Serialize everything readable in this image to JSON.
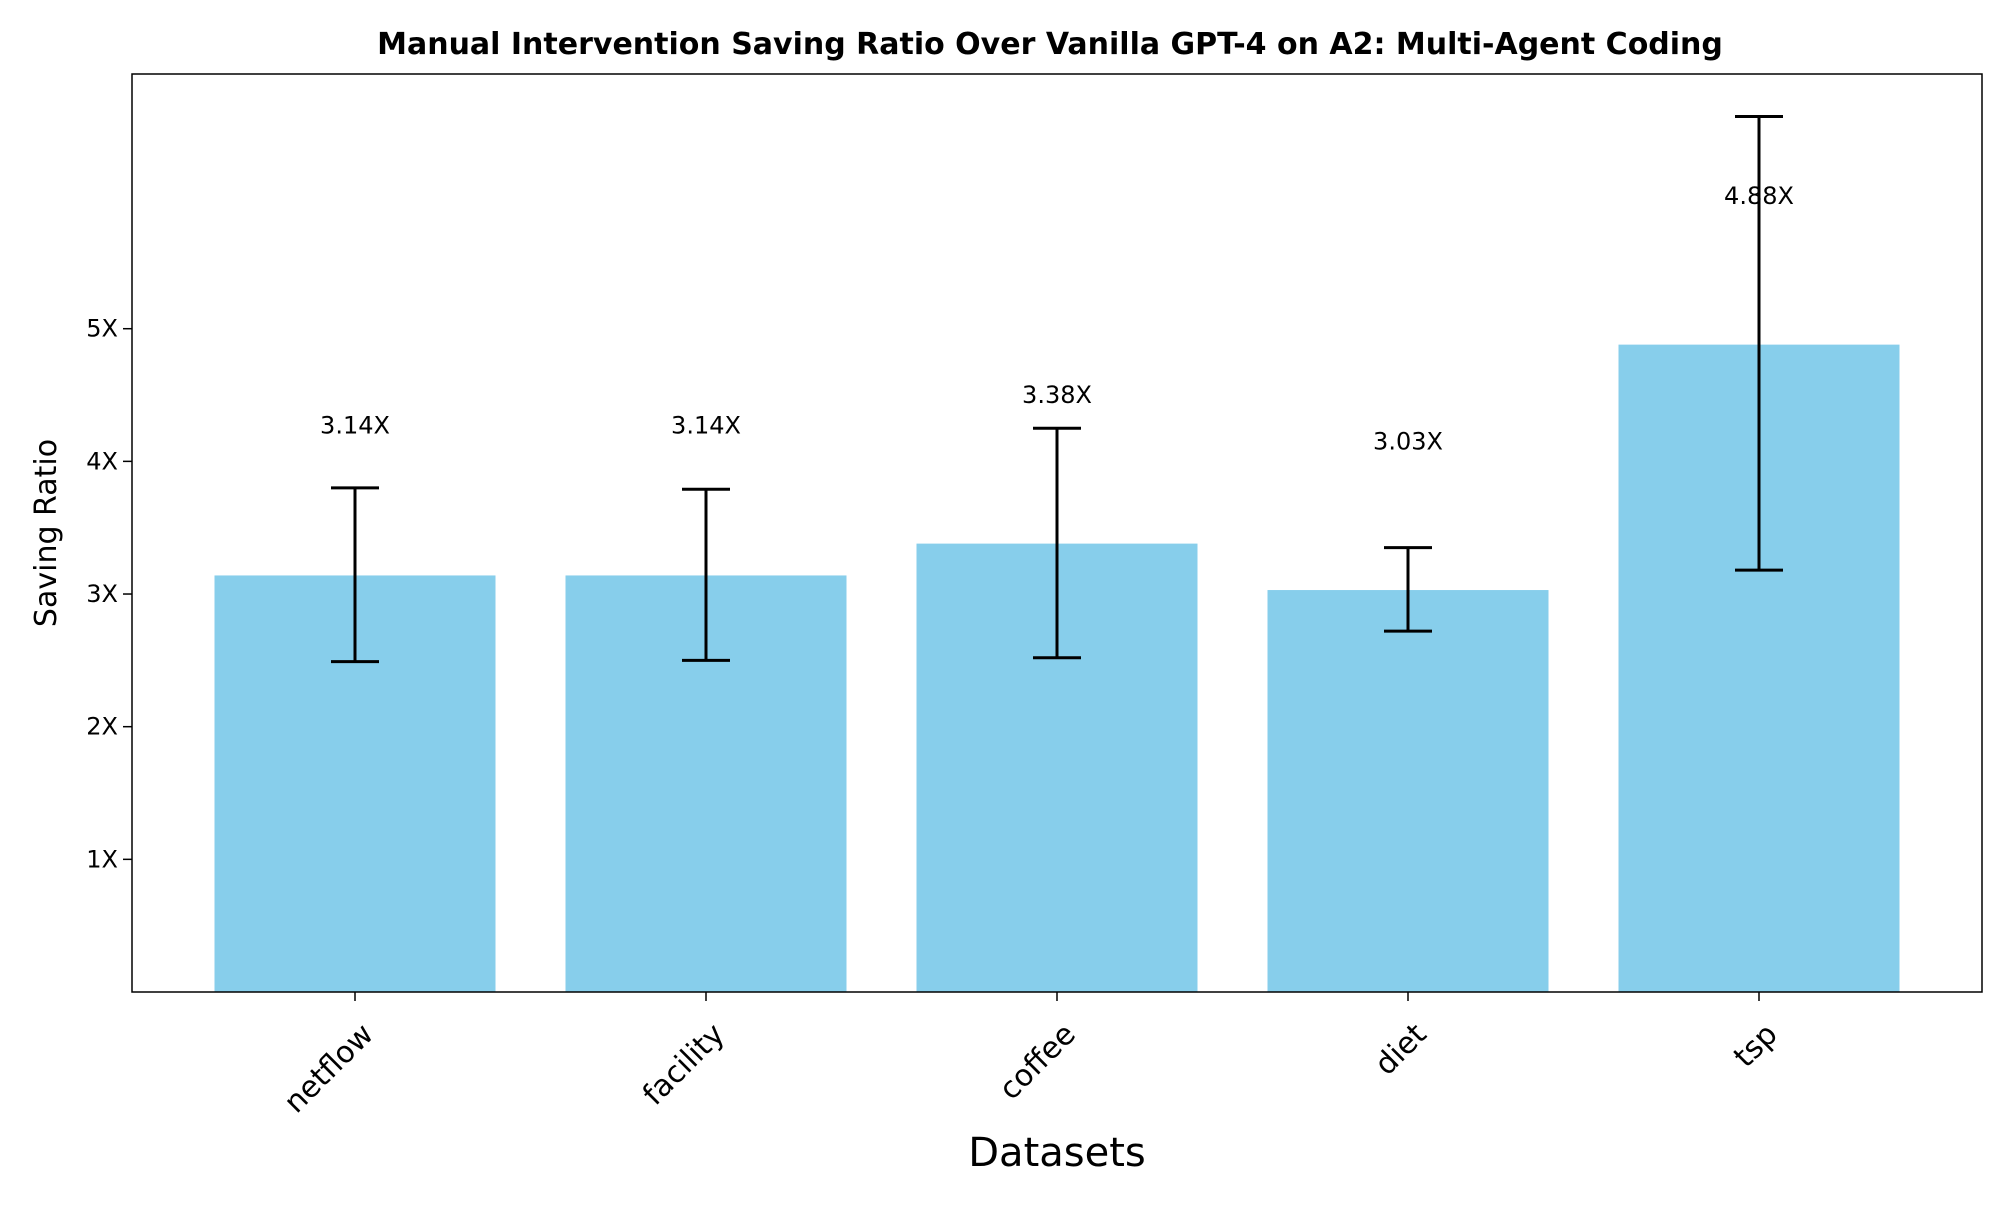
{
  "chart_data": {
    "type": "bar",
    "title": "Manual Intervention Saving Ratio Over Vanilla GPT-4 on A2: Multi-Agent Coding",
    "xlabel": "Datasets",
    "ylabel": "Saving Ratio",
    "categories": [
      "netflow",
      "facility",
      "coffee",
      "diet",
      "tsp"
    ],
    "values": [
      3.14,
      3.14,
      3.38,
      3.03,
      4.88
    ],
    "error_low": [
      2.49,
      2.5,
      2.52,
      2.72,
      3.18
    ],
    "error_high": [
      3.8,
      3.79,
      4.25,
      3.35,
      6.6
    ],
    "data_labels": [
      "3.14X",
      "3.14X",
      "3.38X",
      "3.03X",
      "4.88X"
    ],
    "data_label_values": [
      4.27,
      4.27,
      4.5,
      4.15,
      6.0
    ],
    "yticks": [
      1,
      2,
      3,
      4,
      5
    ],
    "ytick_labels": [
      "1X",
      "2X",
      "3X",
      "4X",
      "5X"
    ],
    "ylim": [
      0,
      6.92
    ],
    "grid": false,
    "bar_color": "#87ceeb",
    "error_color": "#000000"
  }
}
